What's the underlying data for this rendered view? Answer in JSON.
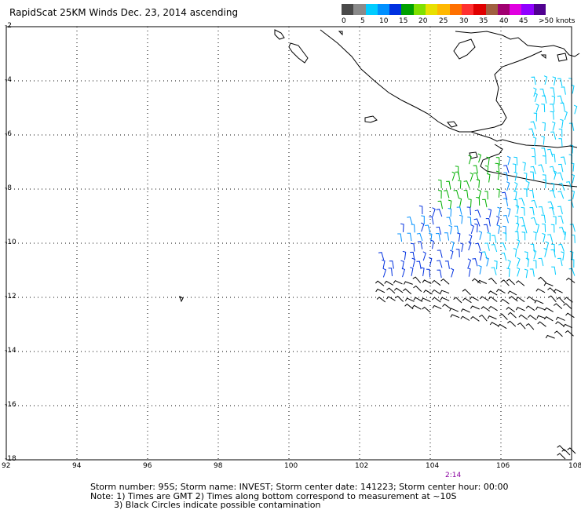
{
  "title": "RapidScat 25KM Winds Dec. 23, 2014 ascending",
  "colorbar": {
    "colors": [
      "#4a4a4a",
      "#8a8a8a",
      "#00ccff",
      "#0090ff",
      "#0030e0",
      "#00a000",
      "#80e000",
      "#e8e000",
      "#ffb800",
      "#ff7000",
      "#ff3030",
      "#e00000",
      "#a06040",
      "#a00070",
      "#e000e0",
      "#9000ff",
      "#500090"
    ],
    "labels": [
      "0",
      "5",
      "10",
      "15",
      "20",
      "25",
      "30",
      "35",
      "40",
      "45",
      ">50 knots"
    ]
  },
  "axes": {
    "y_ticks": [
      "-2",
      "-4",
      "-6",
      "-8",
      "-10",
      "-12",
      "-14",
      "-16",
      "-18"
    ],
    "x_ticks": [
      "92",
      "94",
      "96",
      "98",
      "100",
      "102",
      "104",
      "106",
      "108"
    ]
  },
  "time_label": "2:14",
  "footer": {
    "line1": "Storm number: 95S;  Storm name: INVEST;  Storm center date: 141223;  Storm center hour: 00:00",
    "line2": "Note: 1) Times are GMT  2) Times along bottom correspond to measurement at ~10S",
    "line3": "3) Black Circles indicate possible contamination"
  }
}
